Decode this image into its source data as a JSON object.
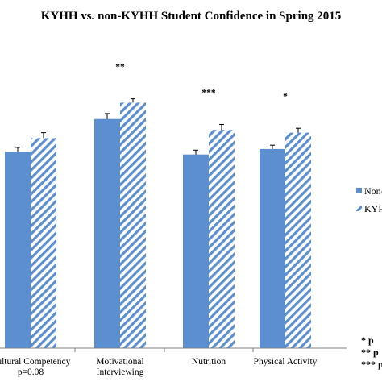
{
  "chart_data": {
    "type": "bar",
    "title": "KYHH vs. non-KYHH Student Confidence in Spring 2015",
    "categories": [
      [
        "Cultural Competency",
        "p=0.08"
      ],
      [
        "Motivational",
        "Interviewing"
      ],
      [
        "Nutrition"
      ],
      [
        "Physical Activity"
      ]
    ],
    "series": [
      {
        "name": "Non-",
        "style": "solid",
        "color": "#5b8fd0",
        "values": [
          3.6,
          4.2,
          3.55,
          3.65
        ],
        "errors": [
          0.08,
          0.1,
          0.08,
          0.07
        ]
      },
      {
        "name": "KYH",
        "style": "hatched",
        "color": "#5b8fd0",
        "values": [
          3.85,
          4.5,
          4.0,
          3.95
        ],
        "errors": [
          0.1,
          0.07,
          0.1,
          0.08
        ]
      }
    ],
    "significance": [
      "",
      "**",
      "***",
      "*"
    ],
    "ylim": [
      0,
      5.2
    ],
    "notes": [
      "*   p",
      "**   p",
      "***  p"
    ],
    "grid": false,
    "legend_position": "right"
  }
}
